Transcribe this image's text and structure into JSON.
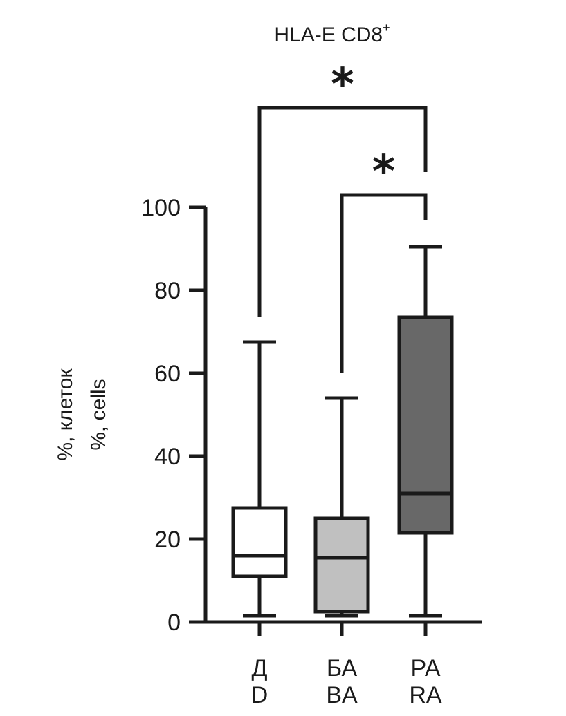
{
  "chart_data": {
    "type": "box",
    "title_main": "HLA-E CD8",
    "title_sup": "+",
    "ylabel_ru": "%, клеток",
    "ylabel_en": "%, cells",
    "ylim": [
      0,
      100
    ],
    "yticks": [
      {
        "value": 0,
        "label": "0"
      },
      {
        "value": 20,
        "label": "20"
      },
      {
        "value": 40,
        "label": "40"
      },
      {
        "value": 60,
        "label": "60"
      },
      {
        "value": 80,
        "label": "80"
      },
      {
        "value": 100,
        "label": "100"
      }
    ],
    "groups": [
      {
        "label_ru": "Д",
        "label_en": "D",
        "min": 1.5,
        "q1": 11,
        "median": 16,
        "q3": 27.5,
        "max": 67.5,
        "fill": "#ffffff"
      },
      {
        "label_ru": "БА",
        "label_en": "BA",
        "min": 1.5,
        "q1": 2.5,
        "median": 15.5,
        "q3": 25,
        "max": 54,
        "fill": "#c0c0c0"
      },
      {
        "label_ru": "РА",
        "label_en": "RA",
        "min": 1.5,
        "q1": 21.5,
        "median": 31,
        "q3": 73.5,
        "max": 90.5,
        "fill": "#686868"
      }
    ],
    "significance": [
      {
        "from": 0,
        "to": 2,
        "label": "*",
        "bar_value": 124,
        "left_end": 73.5,
        "right_end": 108.5
      },
      {
        "from": 1,
        "to": 2,
        "label": "*",
        "bar_value": 103,
        "left_end": 60,
        "right_end": 97
      }
    ]
  }
}
